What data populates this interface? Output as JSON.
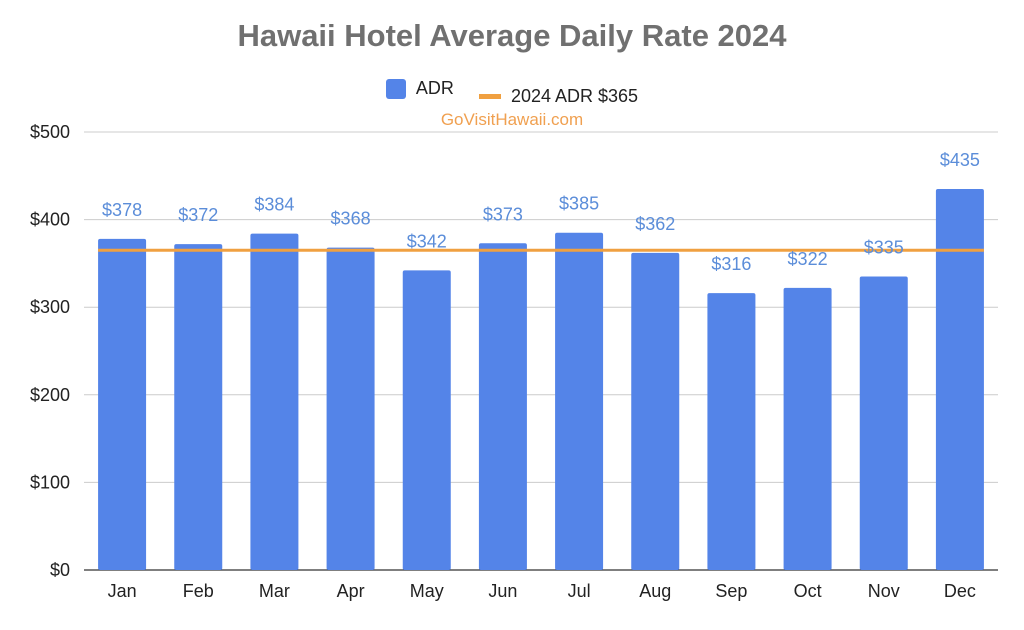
{
  "chart_data": {
    "type": "bar",
    "title": "Hawaii Hotel Average Daily Rate 2024",
    "watermark": "GoVisitHawaii.com",
    "categories": [
      "Jan",
      "Feb",
      "Mar",
      "Apr",
      "May",
      "Jun",
      "Jul",
      "Aug",
      "Sep",
      "Oct",
      "Nov",
      "Dec"
    ],
    "series": [
      {
        "name": "ADR",
        "values": [
          378,
          372,
          384,
          368,
          342,
          373,
          385,
          362,
          316,
          322,
          335,
          435
        ],
        "data_labels": [
          "$378",
          "$372",
          "$384",
          "$368",
          "$342",
          "$373",
          "$385",
          "$362",
          "$316",
          "$322",
          "$335",
          "$435"
        ],
        "color": "#5484e8"
      }
    ],
    "reference_line": {
      "name": "2024 ADR $365",
      "value": 365,
      "color": "#f0a040"
    },
    "ylim": [
      0,
      500
    ],
    "yticks": [
      0,
      100,
      200,
      300,
      400,
      500
    ],
    "ytick_labels": [
      "$0",
      "$100",
      "$200",
      "$300",
      "$400",
      "$500"
    ],
    "xlabel": "",
    "ylabel": "",
    "grid": true,
    "legend_position": "top-center",
    "data_label_color": "#5b8dd9",
    "title_color": "#707070"
  }
}
